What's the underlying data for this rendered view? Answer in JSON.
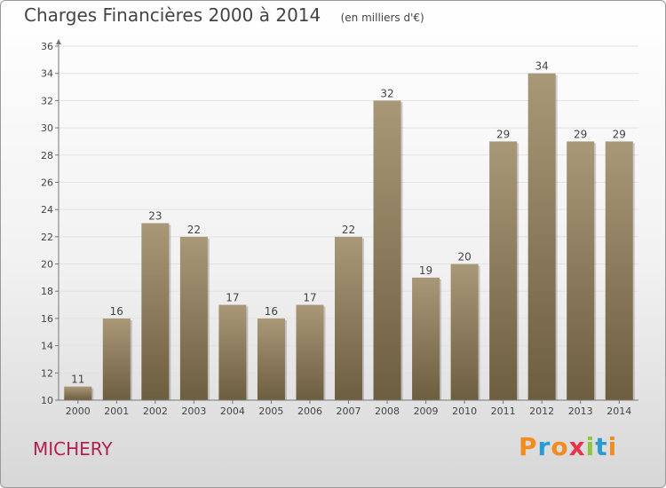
{
  "header": {
    "title": "Charges Financières 2000 à 2014",
    "unit": "(en milliers d'€)"
  },
  "footer": {
    "commune": "MICHERY",
    "logo": {
      "letters": [
        "P",
        "r",
        "o",
        "x",
        "i",
        "t",
        "i"
      ],
      "colors": [
        "#f28c1e",
        "#2b9bd6",
        "#f28c1e",
        "#e8354b",
        "#8cc63f",
        "#2b9bd6",
        "#f28c1e"
      ]
    }
  },
  "chart_data": {
    "type": "bar",
    "categories": [
      "2000",
      "2001",
      "2002",
      "2003",
      "2004",
      "2005",
      "2006",
      "2007",
      "2008",
      "2009",
      "2010",
      "2011",
      "2012",
      "2013",
      "2014"
    ],
    "values": [
      11,
      16,
      23,
      22,
      17,
      16,
      17,
      22,
      32,
      19,
      20,
      29,
      34,
      29,
      29
    ],
    "ylim": [
      10,
      36
    ],
    "yticks": [
      10,
      12,
      14,
      16,
      18,
      20,
      22,
      24,
      26,
      28,
      30,
      32,
      34,
      36
    ],
    "grid": true,
    "colors": {
      "bar_top": "#a89878",
      "bar_bottom": "#6e5e40",
      "grid": "#e2e2e2",
      "axis": "#777777",
      "text": "#444444"
    }
  }
}
